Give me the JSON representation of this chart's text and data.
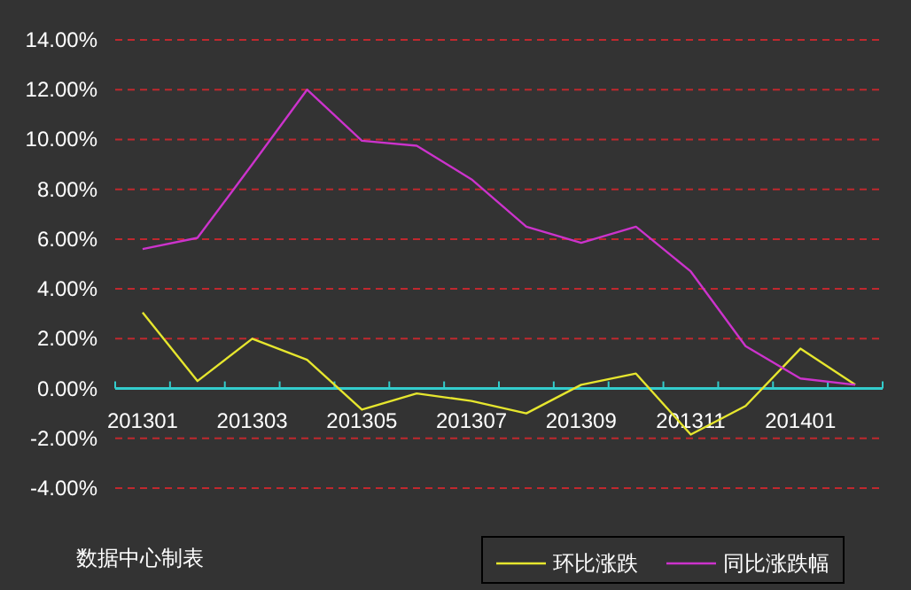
{
  "chart_data": {
    "type": "line",
    "categories": [
      "201301",
      null,
      "201303",
      null,
      "201305",
      null,
      "201307",
      null,
      "201309",
      null,
      "201311",
      null,
      "201401",
      null
    ],
    "series": [
      {
        "name": "环比涨跌",
        "color": "#e6e62e",
        "values": [
          3.05,
          0.3,
          2.0,
          1.15,
          -0.85,
          -0.2,
          -0.5,
          -1.0,
          0.15,
          0.6,
          -1.85,
          -0.7,
          1.6,
          0.15
        ]
      },
      {
        "name": "同比涨跌幅",
        "color": "#cc33cc",
        "values": [
          5.6,
          6.05,
          9.0,
          12.0,
          9.95,
          9.75,
          8.4,
          6.5,
          5.85,
          6.5,
          4.7,
          1.7,
          0.4,
          0.15
        ]
      }
    ],
    "ylim": [
      -4,
      14
    ],
    "yticks": [
      {
        "value": -4,
        "label": "-4.00%"
      },
      {
        "value": -2,
        "label": "-2.00%"
      },
      {
        "value": 0,
        "label": "0.00%"
      },
      {
        "value": 2,
        "label": "2.00%"
      },
      {
        "value": 4,
        "label": "4.00%"
      },
      {
        "value": 6,
        "label": "6.00%"
      },
      {
        "value": 8,
        "label": "8.00%"
      },
      {
        "value": 10,
        "label": "10.00%"
      },
      {
        "value": 12,
        "label": "12.00%"
      },
      {
        "value": 14,
        "label": "14.00%"
      }
    ],
    "grid": "y",
    "line_style": "solid",
    "legend": "bottom",
    "annotations": [
      "数据中心制表"
    ]
  }
}
